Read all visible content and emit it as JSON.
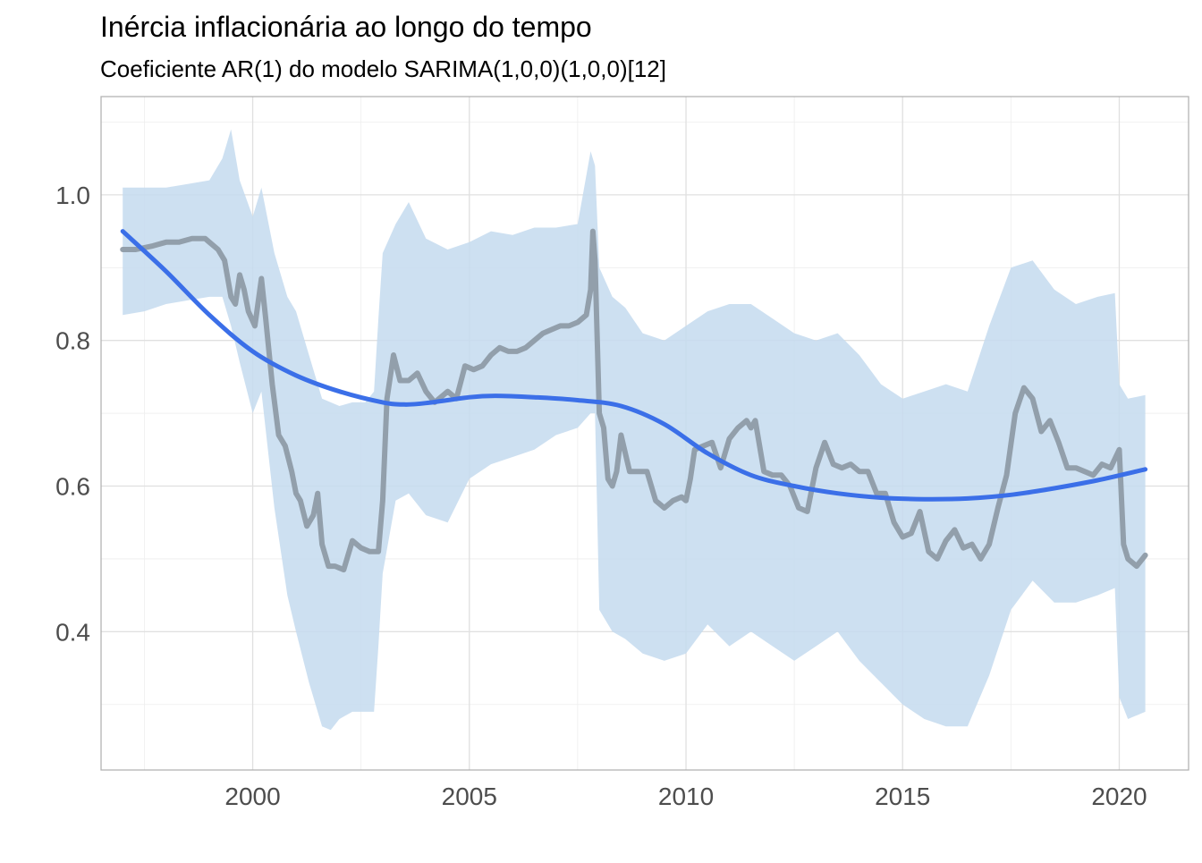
{
  "chart_data": {
    "type": "line",
    "title": "Inércia inflacionária ao longo do tempo",
    "subtitle": "Coeficiente AR(1) do modelo SARIMA(1,0,0)(1,0,0)[12]",
    "xlabel": "",
    "ylabel": "",
    "xlim": [
      1996.5,
      2021.6
    ],
    "ylim": [
      0.21,
      1.135
    ],
    "x_ticks": [
      2000,
      2005,
      2010,
      2015,
      2020
    ],
    "x_tick_labels": [
      "2000",
      "2005",
      "2010",
      "2015",
      "2020"
    ],
    "x_minor": [
      1997.5,
      2002.5,
      2007.5,
      2012.5,
      2017.5
    ],
    "y_ticks": [
      0.4,
      0.6,
      0.8,
      1.0
    ],
    "y_tick_labels": [
      "0.4",
      "0.6",
      "0.8",
      "1.0"
    ],
    "y_minor": [
      0.3,
      0.5,
      0.7,
      0.9,
      1.1
    ],
    "grid": true,
    "series": [
      {
        "kind": "line",
        "color": "#8e9ba6",
        "x": [
          1997.0,
          1997.3,
          1997.7,
          1998.0,
          1998.3,
          1998.6,
          1998.9,
          1999.0,
          1999.2,
          1999.35,
          1999.5,
          1999.6,
          1999.7,
          1999.8,
          1999.9,
          2000.05,
          2000.2,
          2000.3,
          2000.45,
          2000.6,
          2000.75,
          2000.9,
          2001.0,
          2001.1,
          2001.25,
          2001.4,
          2001.5,
          2001.6,
          2001.75,
          2001.9,
          2002.1,
          2002.3,
          2002.5,
          2002.7,
          2002.8,
          2002.9,
          2003.0,
          2003.1,
          2003.25,
          2003.4,
          2003.6,
          2003.8,
          2004.0,
          2004.2,
          2004.4,
          2004.5,
          2004.7,
          2004.9,
          2005.1,
          2005.3,
          2005.5,
          2005.7,
          2005.9,
          2006.1,
          2006.3,
          2006.5,
          2006.7,
          2006.9,
          2007.1,
          2007.3,
          2007.5,
          2007.7,
          2007.8,
          2007.85,
          2007.9,
          2008.0,
          2008.1,
          2008.2,
          2008.3,
          2008.4,
          2008.5,
          2008.7,
          2008.9,
          2009.1,
          2009.3,
          2009.5,
          2009.7,
          2009.9,
          2010.0,
          2010.1,
          2010.2,
          2010.4,
          2010.6,
          2010.8,
          2011.0,
          2011.2,
          2011.4,
          2011.5,
          2011.6,
          2011.8,
          2012.0,
          2012.2,
          2012.4,
          2012.6,
          2012.8,
          2013.0,
          2013.2,
          2013.4,
          2013.6,
          2013.8,
          2014.0,
          2014.2,
          2014.4,
          2014.6,
          2014.8,
          2015.0,
          2015.2,
          2015.4,
          2015.6,
          2015.8,
          2016.0,
          2016.2,
          2016.4,
          2016.6,
          2016.8,
          2017.0,
          2017.2,
          2017.4,
          2017.6,
          2017.8,
          2018.0,
          2018.2,
          2018.4,
          2018.6,
          2018.8,
          2019.0,
          2019.2,
          2019.4,
          2019.6,
          2019.8,
          2020.0,
          2020.1,
          2020.2,
          2020.4,
          2020.6
        ],
        "y": [
          0.925,
          0.925,
          0.93,
          0.935,
          0.935,
          0.94,
          0.94,
          0.935,
          0.925,
          0.91,
          0.86,
          0.85,
          0.89,
          0.87,
          0.84,
          0.82,
          0.885,
          0.83,
          0.74,
          0.67,
          0.655,
          0.62,
          0.59,
          0.58,
          0.545,
          0.56,
          0.59,
          0.52,
          0.49,
          0.49,
          0.485,
          0.525,
          0.515,
          0.51,
          0.51,
          0.51,
          0.58,
          0.72,
          0.78,
          0.745,
          0.745,
          0.755,
          0.73,
          0.715,
          0.725,
          0.73,
          0.72,
          0.765,
          0.76,
          0.765,
          0.78,
          0.79,
          0.785,
          0.785,
          0.79,
          0.8,
          0.81,
          0.815,
          0.82,
          0.82,
          0.825,
          0.835,
          0.87,
          0.95,
          0.91,
          0.7,
          0.68,
          0.61,
          0.6,
          0.62,
          0.67,
          0.62,
          0.62,
          0.62,
          0.58,
          0.57,
          0.58,
          0.585,
          0.58,
          0.61,
          0.65,
          0.655,
          0.66,
          0.625,
          0.665,
          0.68,
          0.69,
          0.68,
          0.69,
          0.62,
          0.615,
          0.615,
          0.6,
          0.57,
          0.565,
          0.625,
          0.66,
          0.63,
          0.625,
          0.63,
          0.62,
          0.62,
          0.59,
          0.59,
          0.55,
          0.53,
          0.535,
          0.565,
          0.51,
          0.5,
          0.525,
          0.54,
          0.515,
          0.52,
          0.5,
          0.52,
          0.57,
          0.615,
          0.7,
          0.735,
          0.72,
          0.675,
          0.69,
          0.66,
          0.625,
          0.625,
          0.62,
          0.615,
          0.63,
          0.625,
          0.65,
          0.52,
          0.5,
          0.49,
          0.505
        ]
      },
      {
        "kind": "smooth",
        "color": "#3b6fe8",
        "x": [
          1997.0,
          1998.0,
          1999.0,
          2000.0,
          2001.0,
          2002.0,
          2003.0,
          2003.5,
          2004.0,
          2005.0,
          2005.6,
          2006.5,
          2007.5,
          2008.5,
          2009.5,
          2010.5,
          2011.5,
          2012.5,
          2013.5,
          2014.5,
          2015.5,
          2016.5,
          2017.5,
          2018.5,
          2019.5,
          2020.6
        ],
        "y": [
          0.95,
          0.895,
          0.835,
          0.785,
          0.752,
          0.73,
          0.715,
          0.712,
          0.714,
          0.722,
          0.724,
          0.722,
          0.718,
          0.71,
          0.685,
          0.645,
          0.615,
          0.6,
          0.59,
          0.584,
          0.582,
          0.583,
          0.588,
          0.597,
          0.608,
          0.623
        ]
      },
      {
        "kind": "band",
        "color": "#c4dbef",
        "x": [
          1997.0,
          1997.5,
          1998.0,
          1998.5,
          1999.0,
          1999.3,
          1999.5,
          1999.7,
          2000.0,
          2000.2,
          2000.5,
          2000.8,
          2001.0,
          2001.3,
          2001.6,
          2001.8,
          2002.0,
          2002.3,
          2002.6,
          2002.8,
          2002.9,
          2003.0,
          2003.3,
          2003.6,
          2004.0,
          2004.5,
          2005.0,
          2005.5,
          2006.0,
          2006.5,
          2007.0,
          2007.5,
          2007.8,
          2007.9,
          2008.0,
          2008.3,
          2008.6,
          2009.0,
          2009.5,
          2010.0,
          2010.5,
          2011.0,
          2011.5,
          2012.0,
          2012.5,
          2013.0,
          2013.5,
          2014.0,
          2014.5,
          2015.0,
          2015.5,
          2016.0,
          2016.5,
          2017.0,
          2017.5,
          2018.0,
          2018.5,
          2019.0,
          2019.5,
          2019.9,
          2020.0,
          2020.2,
          2020.6
        ],
        "upper": [
          1.01,
          1.01,
          1.01,
          1.015,
          1.02,
          1.05,
          1.09,
          1.02,
          0.97,
          1.01,
          0.92,
          0.86,
          0.84,
          0.78,
          0.72,
          0.715,
          0.71,
          0.715,
          0.715,
          0.73,
          0.83,
          0.92,
          0.96,
          0.99,
          0.94,
          0.925,
          0.935,
          0.95,
          0.945,
          0.955,
          0.955,
          0.96,
          1.06,
          1.04,
          0.9,
          0.86,
          0.845,
          0.81,
          0.8,
          0.82,
          0.84,
          0.85,
          0.85,
          0.83,
          0.81,
          0.8,
          0.81,
          0.78,
          0.74,
          0.72,
          0.73,
          0.74,
          0.73,
          0.82,
          0.9,
          0.91,
          0.87,
          0.85,
          0.86,
          0.865,
          0.74,
          0.72,
          0.725
        ],
        "lower": [
          0.835,
          0.84,
          0.85,
          0.855,
          0.86,
          0.86,
          0.82,
          0.77,
          0.7,
          0.73,
          0.57,
          0.45,
          0.4,
          0.33,
          0.27,
          0.265,
          0.28,
          0.29,
          0.29,
          0.29,
          0.38,
          0.48,
          0.58,
          0.59,
          0.56,
          0.55,
          0.61,
          0.63,
          0.64,
          0.65,
          0.67,
          0.68,
          0.7,
          0.7,
          0.43,
          0.4,
          0.39,
          0.37,
          0.36,
          0.37,
          0.41,
          0.38,
          0.4,
          0.38,
          0.36,
          0.38,
          0.4,
          0.36,
          0.33,
          0.3,
          0.28,
          0.27,
          0.27,
          0.34,
          0.43,
          0.47,
          0.44,
          0.44,
          0.45,
          0.46,
          0.31,
          0.28,
          0.29
        ]
      }
    ]
  }
}
